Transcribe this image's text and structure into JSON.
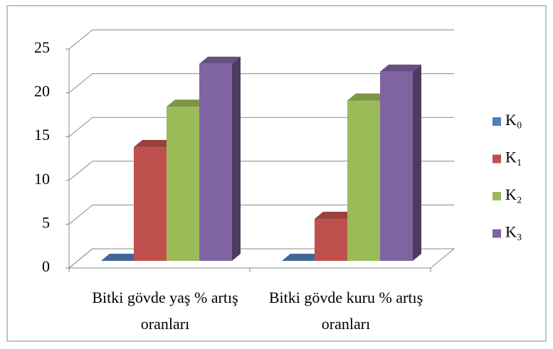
{
  "chart_data": {
    "type": "bar3d",
    "categories": [
      "Bitki gövde yaş % artış oranları",
      "Bitki gövde kuru % artış oranları"
    ],
    "series": [
      {
        "name": "K₀",
        "color": "#4f81bd",
        "values": [
          0,
          0
        ]
      },
      {
        "name": "K₁",
        "color": "#c0504d",
        "values": [
          13,
          4.8
        ]
      },
      {
        "name": "K₂",
        "color": "#9bbb59",
        "values": [
          17.6,
          18.3
        ]
      },
      {
        "name": "K₃",
        "color": "#8064a2",
        "values": [
          22.5,
          21.6
        ]
      }
    ],
    "ylim": [
      0,
      25
    ],
    "yticks": [
      0,
      5,
      10,
      15,
      20,
      25
    ],
    "grid": true,
    "legend": "right"
  }
}
